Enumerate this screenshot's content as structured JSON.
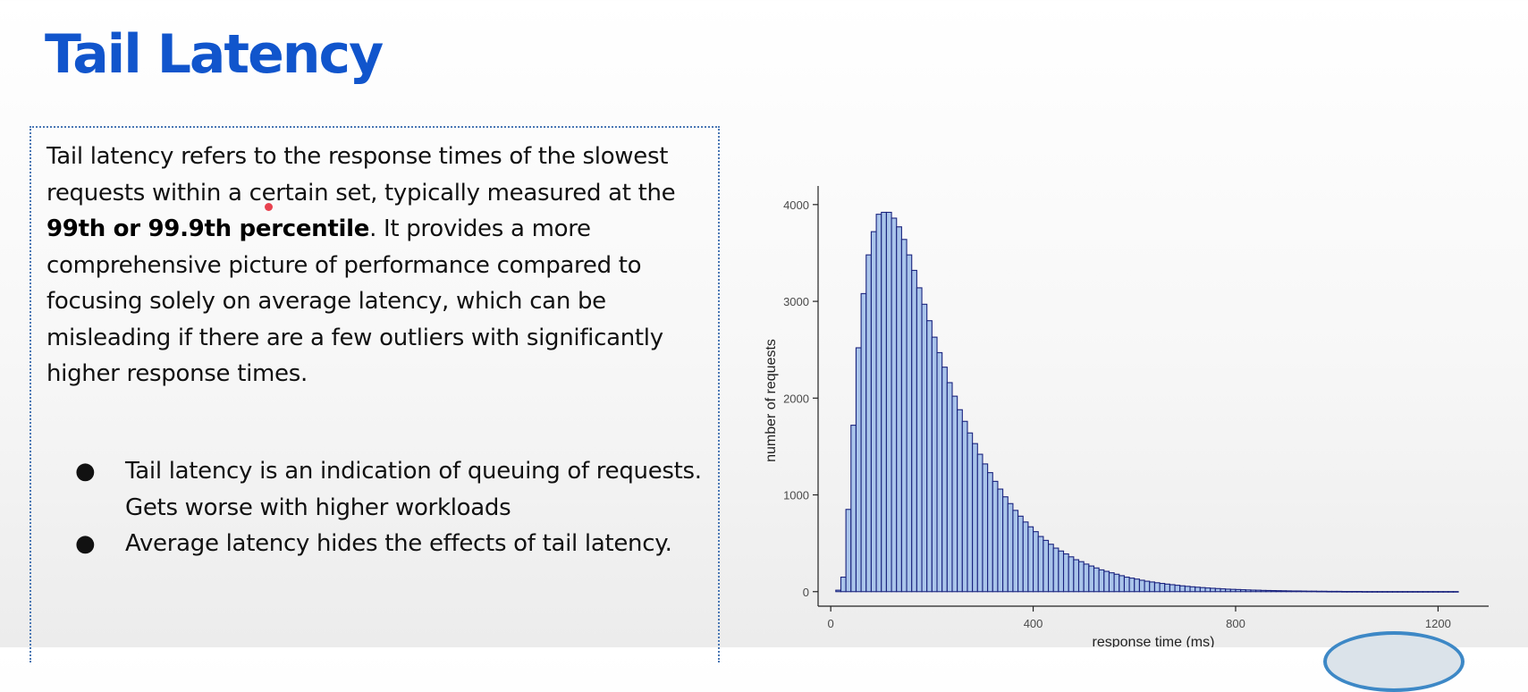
{
  "slide": {
    "title": "Tail Latency",
    "paragraph": {
      "before": "Tail latency refers to the response times of the slowest requests within a certain set, typically measured at the ",
      "bold": "99th or 99.9th percentile",
      "after": ". It provides a more comprehensive picture of performance compared to focusing solely on average latency, which can be misleading if there are a few outliers with significantly higher response times."
    },
    "bullets": [
      "Tail latency is an indication of queuing of requests. Gets worse with higher workloads",
      "Average latency hides the effects of tail latency."
    ],
    "bullet_symbol": "●"
  },
  "colors": {
    "title": "#1155cc",
    "bar_fill": "#a9c4ea",
    "bar_stroke": "#1a237e",
    "laser_dot": "#e8424f"
  },
  "chart_data": {
    "type": "bar",
    "title": "",
    "xlabel": "response time (ms)",
    "ylabel": "number of requests",
    "x_bin_width": 10,
    "x_start": 10,
    "xlim": [
      -25,
      1300
    ],
    "ylim": [
      -150,
      4100
    ],
    "xticks": [
      0,
      400,
      800,
      1200
    ],
    "yticks": [
      0,
      1000,
      2000,
      3000,
      4000
    ],
    "grid": false,
    "values": [
      15,
      150,
      850,
      1720,
      2520,
      3080,
      3480,
      3720,
      3900,
      3920,
      3920,
      3860,
      3770,
      3640,
      3480,
      3320,
      3140,
      2970,
      2800,
      2630,
      2470,
      2320,
      2160,
      2020,
      1880,
      1760,
      1640,
      1530,
      1420,
      1320,
      1230,
      1140,
      1060,
      980,
      910,
      840,
      780,
      720,
      670,
      620,
      570,
      530,
      490,
      450,
      420,
      390,
      360,
      330,
      310,
      285,
      265,
      245,
      225,
      210,
      195,
      180,
      165,
      150,
      140,
      130,
      118,
      108,
      100,
      92,
      85,
      78,
      72,
      66,
      60,
      55,
      50,
      46,
      42,
      38,
      35,
      32,
      29,
      26,
      24,
      22,
      20,
      18,
      16,
      15,
      13,
      12,
      11,
      10,
      9,
      8,
      7,
      7,
      6,
      5,
      5,
      4,
      4,
      3,
      3,
      3,
      2,
      2,
      2,
      2,
      1,
      1,
      1,
      1,
      1,
      1,
      1,
      1,
      1,
      1,
      1,
      1,
      1,
      1,
      1,
      1,
      1,
      1,
      1
    ]
  }
}
